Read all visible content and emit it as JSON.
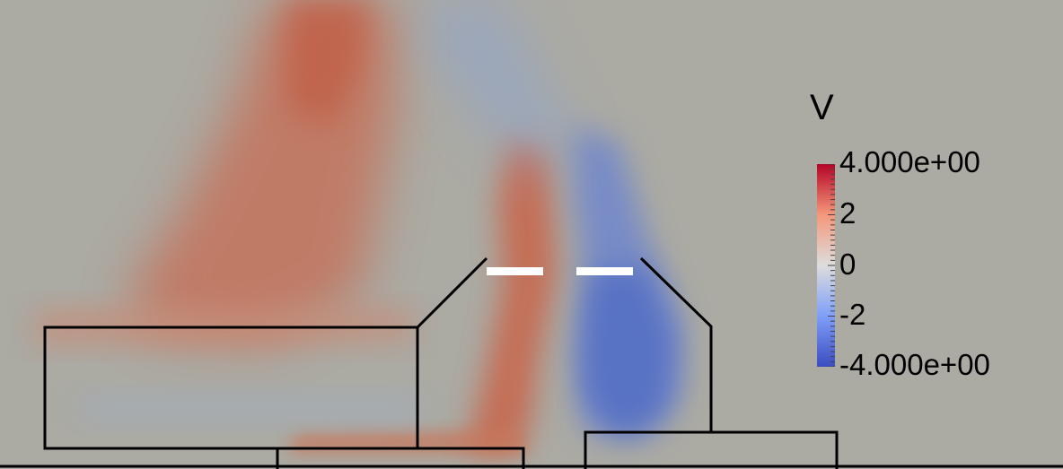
{
  "legend": {
    "title": "V",
    "max_label": "4.000e+00",
    "min_label": "-4.000e+00",
    "mid_labels": [
      "2",
      "0",
      "-2"
    ],
    "range": [
      -4,
      4
    ],
    "colormap": [
      "#3b4cc0",
      "#7f9ff8",
      "#dddddd",
      "#f4987a",
      "#b40426"
    ]
  },
  "colors": {
    "background": "#abaaa3",
    "positive": "#c86a52",
    "negative": "#5c74c4",
    "geometry_lines": "#000000",
    "vanes": "#ffffff"
  }
}
